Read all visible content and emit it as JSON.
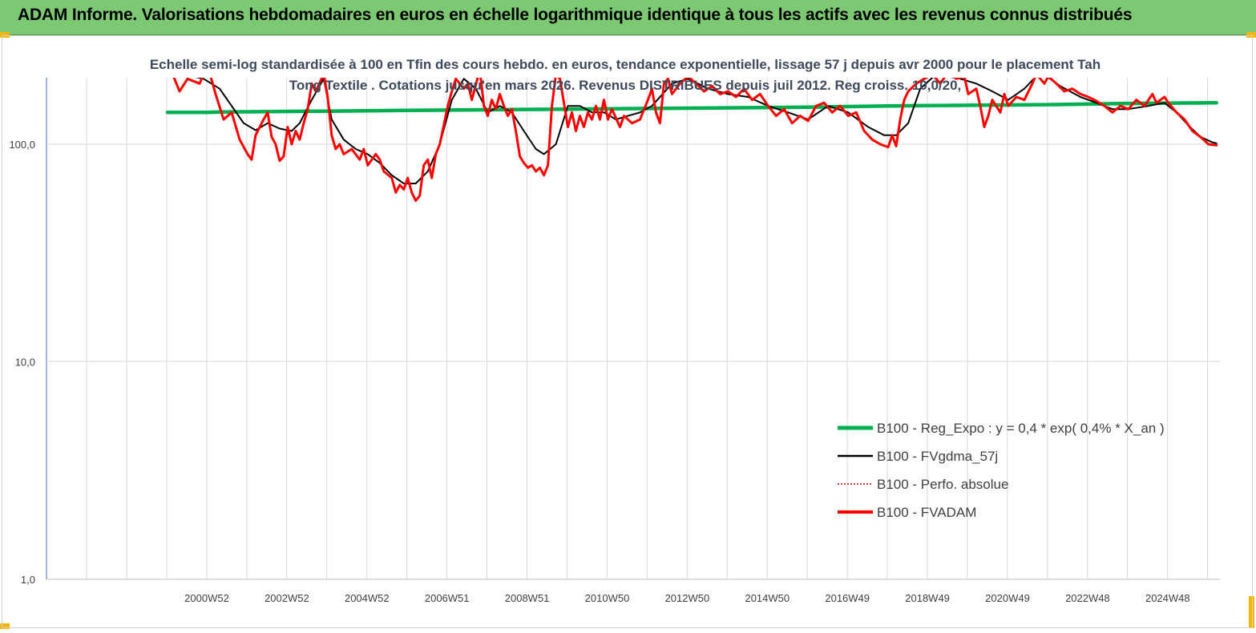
{
  "banner": {
    "title": "ADAM Informe. Valorisations hebdomadaires en euros en échelle logarithmique identique à tous les actifs avec les revenus connus distribués",
    "background": "#7dc873",
    "corner_color": "#f5b800"
  },
  "chart_data": {
    "type": "line",
    "title": "Echelle semi-log standardisée à 100 en Tfin des cours hebdo. en euros, tendance exponentielle, lissage 57 j depuis avr 2000 pour le placement Tah Tong Textile . Cotations jusqu'en mars 2026. Revenus DISTRIBUES depuis juil 2012. Reg croiss. 10,0/20,",
    "xlabel": "",
    "ylabel": "",
    "y_scale": "log",
    "ylim": [
      1,
      200
    ],
    "y_ticks": [
      "1,0",
      "10,0",
      "100,0"
    ],
    "x_ticks": [
      "2000W52",
      "2002W52",
      "2004W52",
      "2006W51",
      "2008W51",
      "2010W50",
      "2012W50",
      "2014W50",
      "2016W49",
      "2018W49",
      "2020W49",
      "2022W48",
      "2024W48"
    ],
    "grid": "vertical",
    "legend_position": "right",
    "series": [
      {
        "name": "B100 - Reg_Expo : y = 0,4 *  exp( 0,4% *   X_an )",
        "color": "#00b050",
        "style": "solid-thick",
        "points": [
          [
            2000.0,
            140
          ],
          [
            2000.6,
            140
          ],
          [
            2001.0,
            140
          ],
          [
            2001.3,
            140.6
          ],
          [
            2002,
            141
          ],
          [
            2004,
            142
          ],
          [
            2006,
            143
          ],
          [
            2008,
            144
          ],
          [
            2010,
            145
          ],
          [
            2012,
            146
          ],
          [
            2014,
            147
          ],
          [
            2016,
            148
          ],
          [
            2018,
            150
          ],
          [
            2020,
            151
          ],
          [
            2022,
            152
          ],
          [
            2024,
            154
          ],
          [
            2026.2,
            155
          ]
        ]
      },
      {
        "name": "B100 - FVgdma_57j",
        "color": "#000000",
        "style": "solid",
        "points": [
          [
            2000.0,
            230
          ],
          [
            2000.4,
            210
          ],
          [
            2000.9,
            200
          ],
          [
            2001.3,
            180
          ],
          [
            2001.6,
            150
          ],
          [
            2001.9,
            125
          ],
          [
            2002.2,
            116
          ],
          [
            2002.5,
            125
          ],
          [
            2002.8,
            118
          ],
          [
            2003.1,
            115
          ],
          [
            2003.3,
            125
          ],
          [
            2003.6,
            160
          ],
          [
            2003.9,
            200
          ],
          [
            2004.1,
            130
          ],
          [
            2004.4,
            105
          ],
          [
            2004.7,
            95
          ],
          [
            2005.0,
            90
          ],
          [
            2005.3,
            82
          ],
          [
            2005.6,
            72
          ],
          [
            2005.9,
            66
          ],
          [
            2006.2,
            66
          ],
          [
            2006.5,
            75
          ],
          [
            2006.8,
            100
          ],
          [
            2007.1,
            160
          ],
          [
            2007.4,
            200
          ],
          [
            2007.7,
            180
          ],
          [
            2008.0,
            140
          ],
          [
            2008.3,
            150
          ],
          [
            2008.6,
            140
          ],
          [
            2008.9,
            115
          ],
          [
            2009.2,
            95
          ],
          [
            2009.4,
            90
          ],
          [
            2009.7,
            100
          ],
          [
            2010.0,
            150
          ],
          [
            2010.3,
            150
          ],
          [
            2010.6,
            140
          ],
          [
            2010.9,
            140
          ],
          [
            2011.2,
            130
          ],
          [
            2011.5,
            135
          ],
          [
            2011.8,
            140
          ],
          [
            2012.1,
            150
          ],
          [
            2012.6,
            190
          ],
          [
            2013.0,
            200
          ],
          [
            2013.5,
            180
          ],
          [
            2014.0,
            170
          ],
          [
            2014.5,
            165
          ],
          [
            2015.0,
            150
          ],
          [
            2015.5,
            140
          ],
          [
            2016.0,
            130
          ],
          [
            2016.5,
            150
          ],
          [
            2017.0,
            140
          ],
          [
            2017.5,
            120
          ],
          [
            2017.9,
            110
          ],
          [
            2018.2,
            110
          ],
          [
            2018.5,
            125
          ],
          [
            2018.8,
            180
          ],
          [
            2019.2,
            210
          ],
          [
            2019.8,
            200
          ],
          [
            2020.2,
            190
          ],
          [
            2020.6,
            175
          ],
          [
            2021.0,
            160
          ],
          [
            2021.4,
            180
          ],
          [
            2021.8,
            215
          ],
          [
            2022.3,
            185
          ],
          [
            2022.8,
            165
          ],
          [
            2023.2,
            155
          ],
          [
            2023.6,
            145
          ],
          [
            2024.0,
            145
          ],
          [
            2024.5,
            150
          ],
          [
            2024.9,
            155
          ],
          [
            2025.2,
            140
          ],
          [
            2025.5,
            122
          ],
          [
            2025.8,
            108
          ],
          [
            2026.1,
            102
          ],
          [
            2026.2,
            101
          ]
        ]
      },
      {
        "name": "B100 - Perfo. absolue",
        "color": "#c00000",
        "style": "dotted",
        "points": []
      },
      {
        "name": "B100 - FVADAM",
        "color": "#ff0000",
        "style": "solid-thick",
        "points": [
          [
            2000.0,
            240
          ],
          [
            2000.3,
            175
          ],
          [
            2000.5,
            200
          ],
          [
            2000.8,
            190
          ],
          [
            2001.0,
            230
          ],
          [
            2001.2,
            170
          ],
          [
            2001.4,
            130
          ],
          [
            2001.6,
            140
          ],
          [
            2001.8,
            105
          ],
          [
            2002.0,
            90
          ],
          [
            2002.1,
            85
          ],
          [
            2002.2,
            110
          ],
          [
            2002.4,
            130
          ],
          [
            2002.5,
            140
          ],
          [
            2002.6,
            108
          ],
          [
            2002.7,
            100
          ],
          [
            2002.8,
            84
          ],
          [
            2002.9,
            88
          ],
          [
            2003.0,
            120
          ],
          [
            2003.1,
            100
          ],
          [
            2003.2,
            115
          ],
          [
            2003.3,
            105
          ],
          [
            2003.4,
            125
          ],
          [
            2003.5,
            145
          ],
          [
            2003.6,
            190
          ],
          [
            2003.7,
            175
          ],
          [
            2003.9,
            210
          ],
          [
            2004.0,
            165
          ],
          [
            2004.1,
            110
          ],
          [
            2004.2,
            95
          ],
          [
            2004.3,
            100
          ],
          [
            2004.4,
            90
          ],
          [
            2004.6,
            95
          ],
          [
            2004.8,
            85
          ],
          [
            2004.9,
            95
          ],
          [
            2005.0,
            80
          ],
          [
            2005.2,
            90
          ],
          [
            2005.3,
            85
          ],
          [
            2005.4,
            75
          ],
          [
            2005.6,
            70
          ],
          [
            2005.7,
            60
          ],
          [
            2005.8,
            65
          ],
          [
            2005.9,
            62
          ],
          [
            2006.0,
            70
          ],
          [
            2006.1,
            60
          ],
          [
            2006.2,
            55
          ],
          [
            2006.3,
            58
          ],
          [
            2006.4,
            80
          ],
          [
            2006.5,
            85
          ],
          [
            2006.6,
            70
          ],
          [
            2006.7,
            90
          ],
          [
            2006.8,
            100
          ],
          [
            2007.0,
            150
          ],
          [
            2007.1,
            175
          ],
          [
            2007.2,
            200
          ],
          [
            2007.4,
            180
          ],
          [
            2007.5,
            190
          ],
          [
            2007.6,
            160
          ],
          [
            2007.8,
            220
          ],
          [
            2007.9,
            150
          ],
          [
            2008.0,
            135
          ],
          [
            2008.1,
            160
          ],
          [
            2008.2,
            145
          ],
          [
            2008.3,
            170
          ],
          [
            2008.4,
            150
          ],
          [
            2008.5,
            135
          ],
          [
            2008.6,
            145
          ],
          [
            2008.7,
            115
          ],
          [
            2008.8,
            88
          ],
          [
            2008.9,
            82
          ],
          [
            2009.0,
            78
          ],
          [
            2009.1,
            80
          ],
          [
            2009.2,
            75
          ],
          [
            2009.3,
            78
          ],
          [
            2009.4,
            72
          ],
          [
            2009.5,
            80
          ],
          [
            2009.6,
            150
          ],
          [
            2009.7,
            210
          ],
          [
            2009.8,
            200
          ],
          [
            2010.0,
            120
          ],
          [
            2010.1,
            140
          ],
          [
            2010.2,
            115
          ],
          [
            2010.3,
            135
          ],
          [
            2010.4,
            120
          ],
          [
            2010.5,
            140
          ],
          [
            2010.6,
            130
          ],
          [
            2010.7,
            150
          ],
          [
            2010.8,
            130
          ],
          [
            2010.9,
            160
          ],
          [
            2011.0,
            130
          ],
          [
            2011.1,
            145
          ],
          [
            2011.3,
            120
          ],
          [
            2011.4,
            135
          ],
          [
            2011.6,
            125
          ],
          [
            2011.8,
            130
          ],
          [
            2012.0,
            160
          ],
          [
            2012.1,
            180
          ],
          [
            2012.2,
            140
          ],
          [
            2012.3,
            125
          ],
          [
            2012.4,
            190
          ],
          [
            2012.5,
            200
          ],
          [
            2012.6,
            170
          ],
          [
            2012.8,
            190
          ],
          [
            2013.0,
            205
          ],
          [
            2013.2,
            190
          ],
          [
            2013.4,
            175
          ],
          [
            2013.6,
            185
          ],
          [
            2013.8,
            170
          ],
          [
            2014.0,
            175
          ],
          [
            2014.2,
            165
          ],
          [
            2014.4,
            180
          ],
          [
            2014.6,
            160
          ],
          [
            2014.8,
            170
          ],
          [
            2015.0,
            150
          ],
          [
            2015.2,
            135
          ],
          [
            2015.4,
            145
          ],
          [
            2015.6,
            125
          ],
          [
            2015.8,
            135
          ],
          [
            2016.0,
            128
          ],
          [
            2016.2,
            150
          ],
          [
            2016.4,
            155
          ],
          [
            2016.6,
            140
          ],
          [
            2016.8,
            150
          ],
          [
            2017.0,
            135
          ],
          [
            2017.2,
            140
          ],
          [
            2017.4,
            115
          ],
          [
            2017.6,
            105
          ],
          [
            2017.8,
            100
          ],
          [
            2018.0,
            97
          ],
          [
            2018.1,
            110
          ],
          [
            2018.2,
            98
          ],
          [
            2018.3,
            130
          ],
          [
            2018.4,
            160
          ],
          [
            2018.5,
            175
          ],
          [
            2018.7,
            190
          ],
          [
            2018.9,
            200
          ],
          [
            2019.1,
            210
          ],
          [
            2019.3,
            190
          ],
          [
            2019.5,
            215
          ],
          [
            2019.7,
            200
          ],
          [
            2019.9,
            205
          ],
          [
            2020.0,
            170
          ],
          [
            2020.2,
            180
          ],
          [
            2020.3,
            150
          ],
          [
            2020.4,
            120
          ],
          [
            2020.5,
            135
          ],
          [
            2020.6,
            160
          ],
          [
            2020.8,
            140
          ],
          [
            2020.9,
            170
          ],
          [
            2021.0,
            150
          ],
          [
            2021.2,
            165
          ],
          [
            2021.4,
            160
          ],
          [
            2021.6,
            190
          ],
          [
            2021.7,
            210
          ],
          [
            2021.9,
            190
          ],
          [
            2022.0,
            205
          ],
          [
            2022.2,
            190
          ],
          [
            2022.4,
            175
          ],
          [
            2022.6,
            180
          ],
          [
            2022.8,
            170
          ],
          [
            2023.0,
            165
          ],
          [
            2023.2,
            158
          ],
          [
            2023.4,
            150
          ],
          [
            2023.6,
            140
          ],
          [
            2023.8,
            150
          ],
          [
            2024.0,
            145
          ],
          [
            2024.2,
            160
          ],
          [
            2024.4,
            150
          ],
          [
            2024.6,
            170
          ],
          [
            2024.7,
            155
          ],
          [
            2024.9,
            165
          ],
          [
            2025.0,
            155
          ],
          [
            2025.2,
            140
          ],
          [
            2025.4,
            130
          ],
          [
            2025.6,
            115
          ],
          [
            2025.8,
            108
          ],
          [
            2026.0,
            100
          ],
          [
            2026.2,
            99
          ]
        ]
      }
    ]
  }
}
